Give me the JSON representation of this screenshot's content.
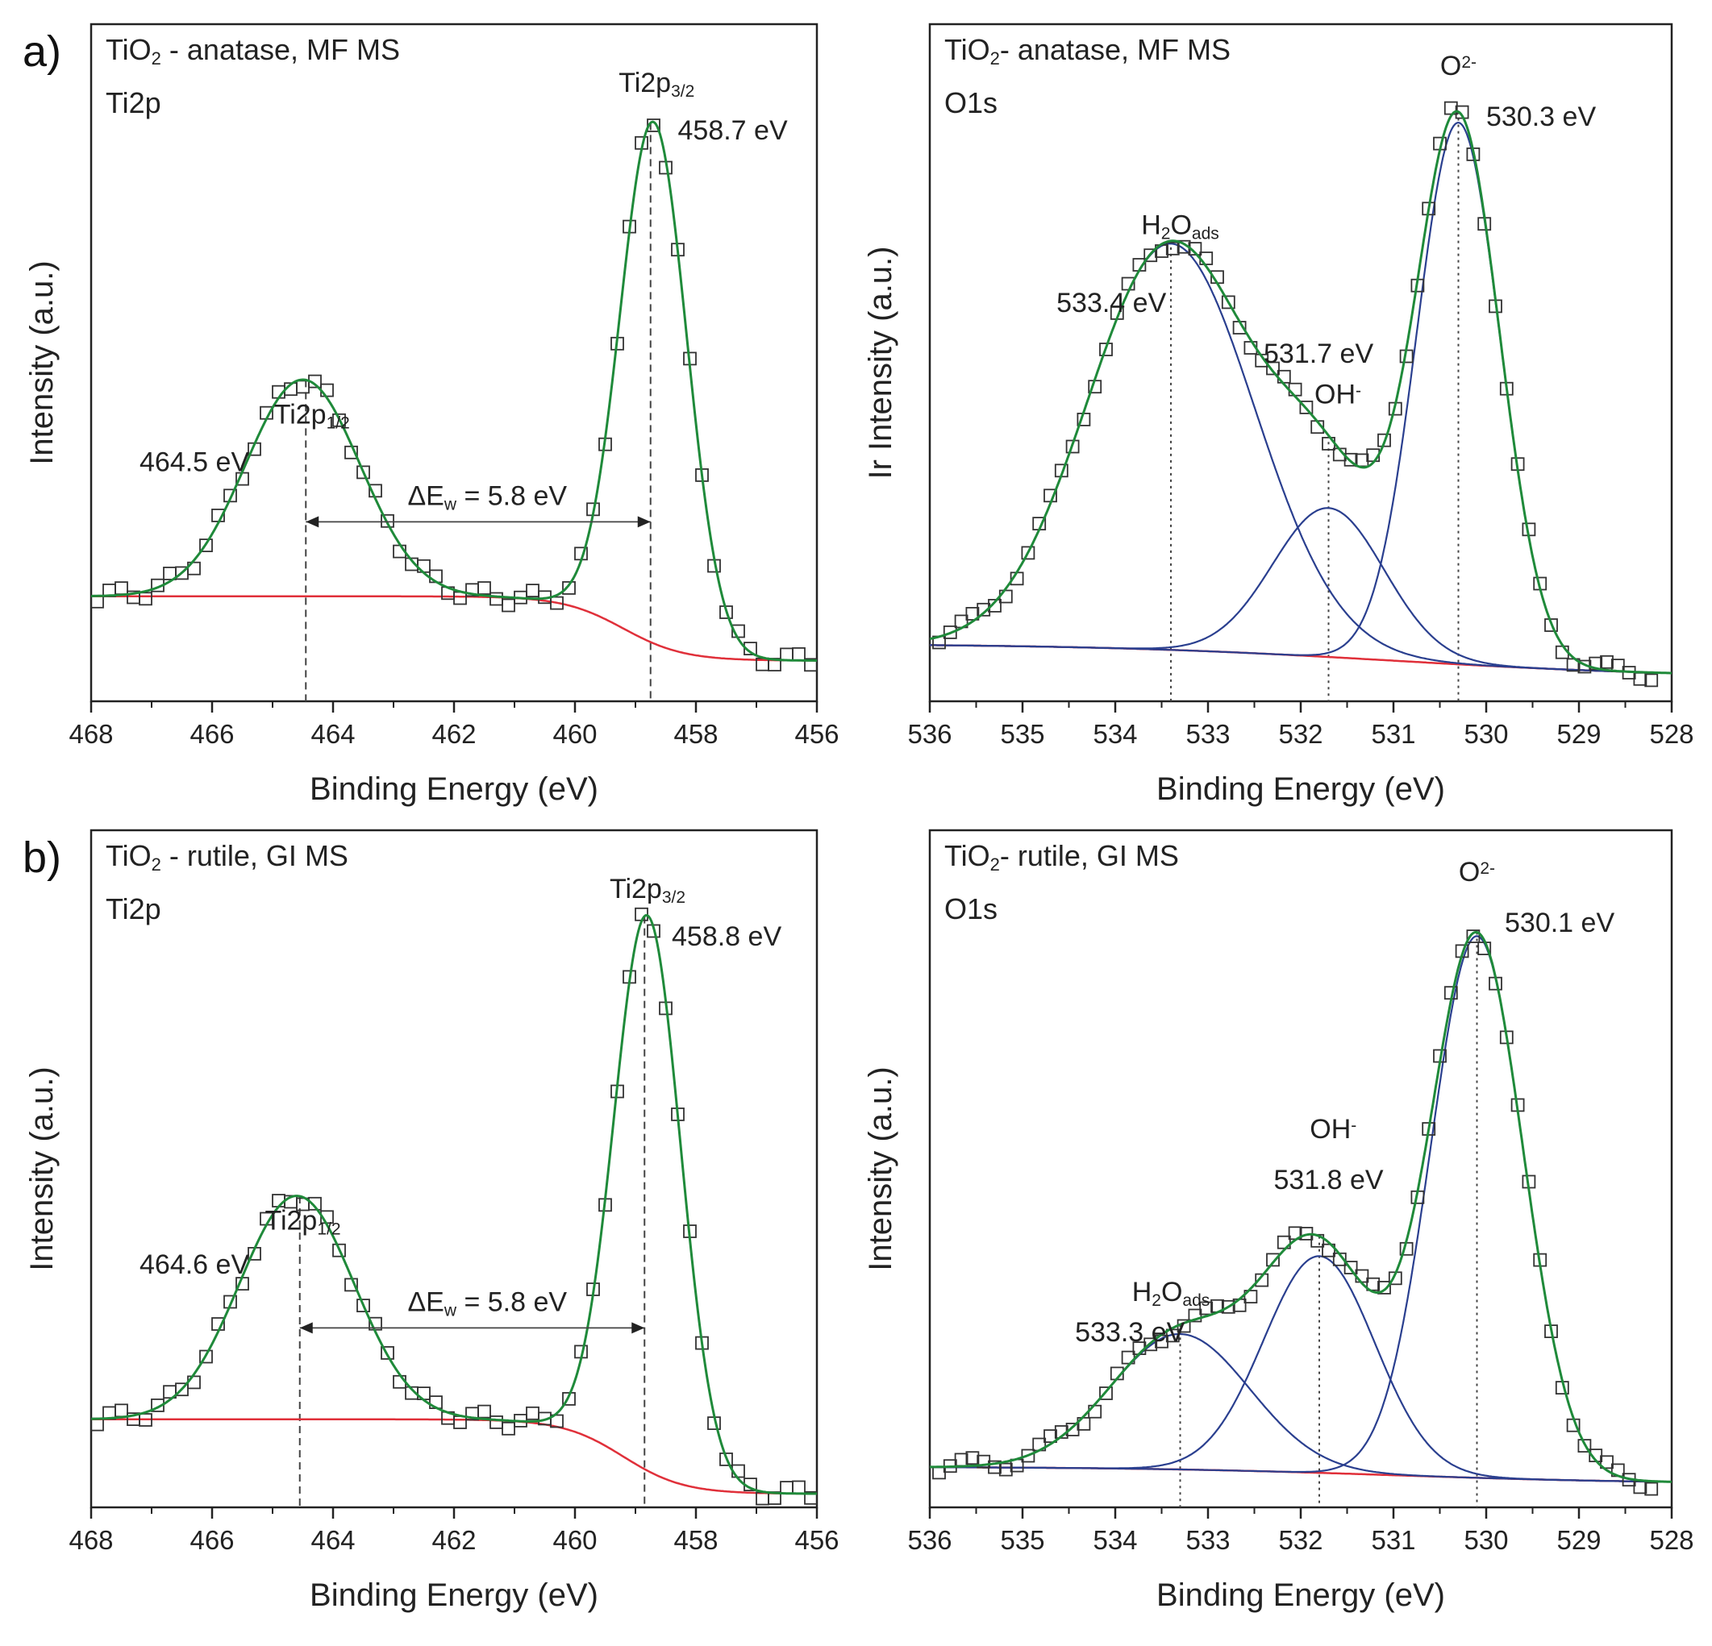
{
  "figure": {
    "row_labels": [
      "a)",
      "b)"
    ]
  },
  "colors": {
    "data_points": "#333333",
    "envelope": "#1f8a3a",
    "component": "#2a3f8f",
    "background": "#e0303a",
    "axis": "#222222"
  },
  "chart_data": [
    {
      "id": "a_ti2p",
      "type": "scatter",
      "row": "a)",
      "title_lines": [
        {
          "parts": [
            {
              "t": "TiO"
            },
            {
              "t": "2",
              "sub": true
            },
            {
              "t": " - anatase, MF MS"
            }
          ]
        },
        {
          "parts": [
            {
              "t": "Ti2p"
            }
          ]
        }
      ],
      "xlabel": "Binding Energy (eV)",
      "ylabel": "Intensity (a.u.)",
      "xlim": [
        468,
        456
      ],
      "ylim": [
        0,
        1
      ],
      "xticks": [
        468,
        466,
        464,
        462,
        460,
        458,
        456
      ],
      "background": {
        "left": 0.155,
        "right": 0.06,
        "center": 459.2,
        "width": 0.5
      },
      "peaks": [
        {
          "center": 464.5,
          "amp": 0.32,
          "sigma": 0.95,
          "component": false
        },
        {
          "center": 458.7,
          "amp": 0.77,
          "sigma": 0.55,
          "component": false
        }
      ],
      "x_start": 467.9,
      "x_end": 456.1,
      "point_step": 0.2,
      "dashed_lines": [
        464.45,
        458.75
      ],
      "line_style": "dashed",
      "arrow": {
        "from": 464.45,
        "to": 458.75,
        "y": 0.265
      },
      "labels": [
        {
          "parts": [
            {
              "t": "Ti2p"
            },
            {
              "t": "1/2",
              "sub": true
            }
          ],
          "x": 464.35,
          "y": 0.41,
          "anchor": "middle"
        },
        {
          "parts": [
            {
              "t": "464.5 eV"
            }
          ],
          "x": 467.2,
          "y": 0.34,
          "anchor": "start"
        },
        {
          "parts": [
            {
              "t": "ΔE"
            },
            {
              "t": "w",
              "sub": true
            },
            {
              "t": " = 5.8 eV"
            }
          ],
          "x": 461.45,
          "y": 0.29,
          "anchor": "middle"
        },
        {
          "parts": [
            {
              "t": "Ti2p"
            },
            {
              "t": "3/2",
              "sub": true
            }
          ],
          "x": 458.65,
          "y": 0.9,
          "anchor": "middle"
        },
        {
          "parts": [
            {
              "t": "458.7 eV"
            }
          ],
          "x": 458.3,
          "y": 0.83,
          "anchor": "start"
        }
      ]
    },
    {
      "id": "a_o1s",
      "type": "scatter",
      "row": "a)",
      "title_lines": [
        {
          "parts": [
            {
              "t": "TiO"
            },
            {
              "t": "2",
              "sub": true
            },
            {
              "t": "- anatase, MF MS"
            }
          ]
        },
        {
          "parts": [
            {
              "t": "O1s"
            }
          ]
        }
      ],
      "xlabel": "Binding Energy (eV)",
      "ylabel": "Ir Intensity (a.u.)",
      "xlim": [
        536,
        528
      ],
      "ylim": [
        0,
        1
      ],
      "xticks": [
        536,
        535,
        534,
        533,
        532,
        531,
        530,
        529,
        528
      ],
      "background": {
        "left": 0.085,
        "right": 0.035,
        "center": 531.0,
        "width": 1.6
      },
      "peaks": [
        {
          "center": 533.4,
          "amp": 0.6,
          "sigma": 0.9,
          "component": true
        },
        {
          "center": 531.7,
          "amp": 0.22,
          "sigma": 0.6,
          "component": true
        },
        {
          "center": 530.3,
          "amp": 0.8,
          "sigma": 0.45,
          "component": true
        }
      ],
      "x_start": 535.9,
      "x_end": 528.1,
      "point_step": 0.12,
      "dashed_lines": [
        533.4,
        531.7,
        530.3
      ],
      "line_style": "dotted",
      "labels": [
        {
          "parts": [
            {
              "t": "O"
            },
            {
              "t": "2-",
              "sup": true
            }
          ],
          "x": 530.3,
          "y": 0.925,
          "anchor": "middle"
        },
        {
          "parts": [
            {
              "t": "530.3 eV"
            }
          ],
          "x": 530.0,
          "y": 0.85,
          "anchor": "start"
        },
        {
          "parts": [
            {
              "t": "H"
            },
            {
              "t": "2",
              "sub": true
            },
            {
              "t": "O"
            },
            {
              "t": "ads",
              "sub": true
            }
          ],
          "x": 533.3,
          "y": 0.69,
          "anchor": "middle"
        },
        {
          "parts": [
            {
              "t": "533.4 eV"
            }
          ],
          "x": 533.45,
          "y": 0.575,
          "anchor": "end"
        },
        {
          "parts": [
            {
              "t": "531.7 eV"
            }
          ],
          "x": 532.4,
          "y": 0.5,
          "anchor": "start"
        },
        {
          "parts": [
            {
              "t": "OH"
            },
            {
              "t": "-",
              "sup": true
            }
          ],
          "x": 531.6,
          "y": 0.44,
          "anchor": "middle"
        }
      ]
    },
    {
      "id": "b_ti2p",
      "type": "scatter",
      "row": "b)",
      "title_lines": [
        {
          "parts": [
            {
              "t": "TiO"
            },
            {
              "t": "2",
              "sub": true
            },
            {
              "t": " - rutile, GI MS"
            }
          ]
        },
        {
          "parts": [
            {
              "t": "Ti2p"
            }
          ]
        }
      ],
      "xlabel": "Binding Energy (eV)",
      "ylabel": "Intensity (a.u.)",
      "xlim": [
        468,
        456
      ],
      "ylim": [
        0,
        1
      ],
      "xticks": [
        468,
        466,
        464,
        462,
        460,
        458,
        456
      ],
      "background": {
        "left": 0.13,
        "right": 0.02,
        "center": 459.2,
        "width": 0.5
      },
      "peaks": [
        {
          "center": 464.6,
          "amp": 0.33,
          "sigma": 0.95,
          "component": false
        },
        {
          "center": 458.8,
          "amp": 0.82,
          "sigma": 0.55,
          "component": false
        }
      ],
      "x_start": 467.9,
      "x_end": 456.1,
      "point_step": 0.2,
      "dashed_lines": [
        464.55,
        458.85
      ],
      "line_style": "dashed",
      "arrow": {
        "from": 464.55,
        "to": 458.85,
        "y": 0.265
      },
      "labels": [
        {
          "parts": [
            {
              "t": "Ti2p"
            },
            {
              "t": "1/2",
              "sub": true
            }
          ],
          "x": 464.5,
          "y": 0.41,
          "anchor": "middle"
        },
        {
          "parts": [
            {
              "t": "464.6 eV"
            }
          ],
          "x": 467.2,
          "y": 0.345,
          "anchor": "start"
        },
        {
          "parts": [
            {
              "t": "ΔE"
            },
            {
              "t": "w",
              "sub": true
            },
            {
              "t": " = 5.8 eV"
            }
          ],
          "x": 461.45,
          "y": 0.29,
          "anchor": "middle"
        },
        {
          "parts": [
            {
              "t": "Ti2p"
            },
            {
              "t": "3/2",
              "sub": true
            }
          ],
          "x": 458.8,
          "y": 0.9,
          "anchor": "middle"
        },
        {
          "parts": [
            {
              "t": "458.8 eV"
            }
          ],
          "x": 458.4,
          "y": 0.83,
          "anchor": "start"
        }
      ]
    },
    {
      "id": "b_o1s",
      "type": "scatter",
      "row": "b)",
      "title_lines": [
        {
          "parts": [
            {
              "t": "TiO"
            },
            {
              "t": "2",
              "sub": true
            },
            {
              "t": "- rutile, GI MS"
            }
          ]
        },
        {
          "parts": [
            {
              "t": "O1s"
            }
          ]
        }
      ],
      "xlabel": "Binding Energy (eV)",
      "ylabel": "Intensity (a.u.)",
      "xlim": [
        536,
        528
      ],
      "ylim": [
        0,
        1
      ],
      "xticks": [
        536,
        535,
        534,
        533,
        532,
        531,
        530,
        529,
        528
      ],
      "background": {
        "left": 0.06,
        "right": 0.035,
        "center": 531.0,
        "width": 1.4
      },
      "peaks": [
        {
          "center": 533.3,
          "amp": 0.2,
          "sigma": 0.75,
          "component": true
        },
        {
          "center": 531.8,
          "amp": 0.32,
          "sigma": 0.6,
          "component": true
        },
        {
          "center": 530.1,
          "amp": 0.8,
          "sigma": 0.5,
          "component": true
        }
      ],
      "x_start": 535.9,
      "x_end": 528.1,
      "point_step": 0.12,
      "dashed_lines": [
        533.3,
        531.8,
        530.1
      ],
      "line_style": "dotted",
      "labels": [
        {
          "parts": [
            {
              "t": "O"
            },
            {
              "t": "2-",
              "sup": true
            }
          ],
          "x": 530.1,
          "y": 0.925,
          "anchor": "middle"
        },
        {
          "parts": [
            {
              "t": "530.1 eV"
            }
          ],
          "x": 529.8,
          "y": 0.85,
          "anchor": "start"
        },
        {
          "parts": [
            {
              "t": "OH"
            },
            {
              "t": "-",
              "sup": true
            }
          ],
          "x": 531.65,
          "y": 0.545,
          "anchor": "middle"
        },
        {
          "parts": [
            {
              "t": "531.8 eV"
            }
          ],
          "x": 531.7,
          "y": 0.47,
          "anchor": "middle"
        },
        {
          "parts": [
            {
              "t": "H"
            },
            {
              "t": "2",
              "sub": true
            },
            {
              "t": "O"
            },
            {
              "t": "ads",
              "sub": true
            }
          ],
          "x": 533.4,
          "y": 0.305,
          "anchor": "middle"
        },
        {
          "parts": [
            {
              "t": "533.3 eV"
            }
          ],
          "x": 533.25,
          "y": 0.245,
          "anchor": "end"
        }
      ]
    }
  ]
}
